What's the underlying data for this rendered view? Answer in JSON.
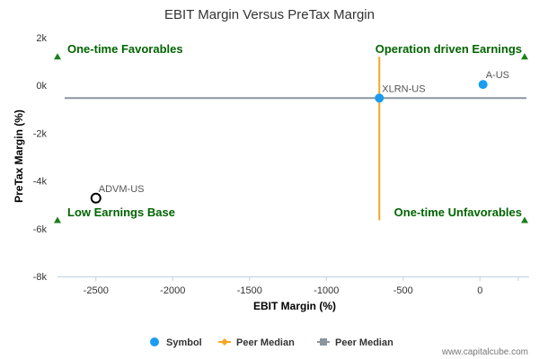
{
  "chart_data": {
    "type": "scatter",
    "title": "EBIT Margin Versus PreTax Margin",
    "xlabel": "EBIT Margin (%)",
    "ylabel": "PreTax Margin (%)",
    "xlim": [
      -2750,
      320
    ],
    "ylim": [
      -8000,
      2000
    ],
    "x_ticks": [
      {
        "value": -2500,
        "label": "-2500"
      },
      {
        "value": -2000,
        "label": "-2000"
      },
      {
        "value": -1500,
        "label": "-1500"
      },
      {
        "value": -1000,
        "label": "-1000"
      },
      {
        "value": -500,
        "label": "-500"
      },
      {
        "value": 0,
        "label": "0"
      },
      {
        "value": 250,
        "label": ""
      }
    ],
    "y_ticks": [
      {
        "value": 2000,
        "label": "2k"
      },
      {
        "value": 0,
        "label": "0k"
      },
      {
        "value": -2000,
        "label": "-2k"
      },
      {
        "value": -4000,
        "label": "-4k"
      },
      {
        "value": -6000,
        "label": "-6k"
      },
      {
        "value": -8000,
        "label": "-8k"
      }
    ],
    "points": [
      {
        "label": "A-US",
        "x": 20,
        "y": 40,
        "style": "filled",
        "color": "#1a9cf0"
      },
      {
        "label": "XLRN-US",
        "x": -655,
        "y": -530,
        "style": "filled",
        "color": "#1a9cf0"
      },
      {
        "label": "ADVM-US",
        "x": -2500,
        "y": -4720,
        "style": "hollow",
        "color": "#000000"
      }
    ],
    "peer_median": {
      "x": -655,
      "y": -530,
      "vertical_color": "#f5a623",
      "horizontal_color": "#8a959e"
    },
    "quadrants": [
      {
        "label": "One-time Favorables",
        "position": "top-left"
      },
      {
        "label": "Operation driven Earnings",
        "position": "top-right"
      },
      {
        "label": "Low Earnings Base",
        "position": "bottom-left"
      },
      {
        "label": "One-time Unfavorables",
        "position": "bottom-right"
      }
    ],
    "legend": [
      {
        "name": "Symbol",
        "marker": "circle",
        "color": "#1a9cf0"
      },
      {
        "name": "Peer Median",
        "marker": "diamond-line",
        "color": "#f5a623"
      },
      {
        "name": "Peer Median",
        "marker": "square-line",
        "color": "#8a959e"
      }
    ],
    "legend_position": "bottom-center",
    "grid": false
  },
  "colors": {
    "quadrant_text": "#006400",
    "triangle_marker": "#1a7f1a",
    "axis_line": "#c0d0e0"
  },
  "watermark": "www.capitalcube.com"
}
